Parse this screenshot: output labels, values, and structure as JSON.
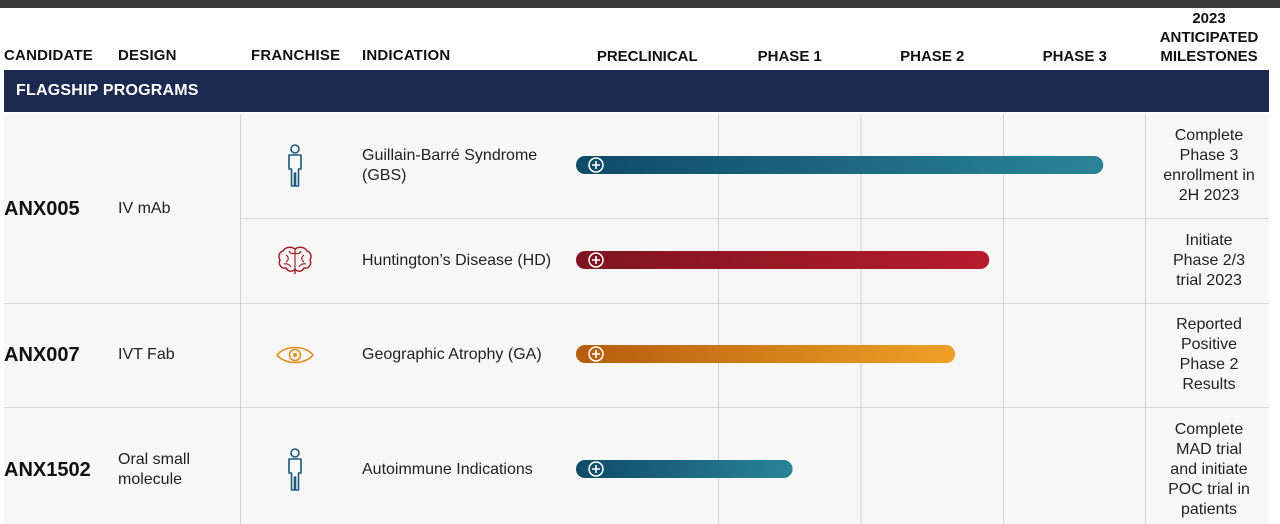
{
  "headers": {
    "candidate": "CANDIDATE",
    "design": "DESIGN",
    "franchise": "FRANCHISE",
    "indication": "INDICATION",
    "milestones_l1": "2023",
    "milestones_l2": "ANTICIPATED",
    "milestones_l3": "MILESTONES"
  },
  "section_title": "FLAGSHIP PROGRAMS",
  "colors": {
    "band": "#1c2a4f",
    "teal_start": "#0f4a66",
    "teal_end": "#2a8596",
    "red_start": "#7d1420",
    "red_end": "#b71c2c",
    "orange_start": "#b65c0c",
    "orange_end": "#f0a027"
  },
  "programs": [
    {
      "candidate": "ANX005",
      "design": "IV mAb"
    },
    {
      "candidate": "ANX007",
      "design": "IVT Fab"
    },
    {
      "candidate": "ANX1502",
      "design_l1": "Oral small",
      "design_l2": "molecule"
    }
  ],
  "rows": [
    {
      "franchise_icon": "person-icon",
      "indication_l1": "Guillain-Barré Syndrome",
      "indication_l2": "(GBS)",
      "milestone": [
        "Complete",
        "Phase 3",
        "enrollment in",
        "2H 2023"
      ]
    },
    {
      "franchise_icon": "brain-icon",
      "indication": "Huntington’s Disease (HD)",
      "milestone": [
        "Initiate",
        "Phase 2/3",
        "trial 2023"
      ]
    },
    {
      "franchise_icon": "eye-icon",
      "indication": "Geographic Atrophy (GA)",
      "milestone": [
        "Reported",
        "Positive",
        "Phase 2",
        "Results"
      ]
    },
    {
      "franchise_icon": "person-icon",
      "indication": "Autoimmune Indications",
      "milestone": [
        "Complete",
        "MAD trial",
        "and initiate",
        "POC trial in",
        "patients"
      ]
    }
  ],
  "chart_data": {
    "type": "bar",
    "orientation": "horizontal",
    "stages": [
      "PRECLINICAL",
      "PHASE 1",
      "PHASE 2",
      "PHASE 3"
    ],
    "categories": [
      "Guillain-Barré Syndrome (GBS)",
      "Huntington’s Disease (HD)",
      "Geographic Atrophy (GA)",
      "Autoimmune Indications"
    ],
    "values": [
      3.7,
      2.9,
      2.66,
      1.52
    ],
    "value_unit": "development stages completed (0 = start of Preclinical, 4 = end of Phase 3)",
    "xlim": [
      0,
      4
    ],
    "colors": [
      "teal",
      "red",
      "orange",
      "teal"
    ]
  }
}
